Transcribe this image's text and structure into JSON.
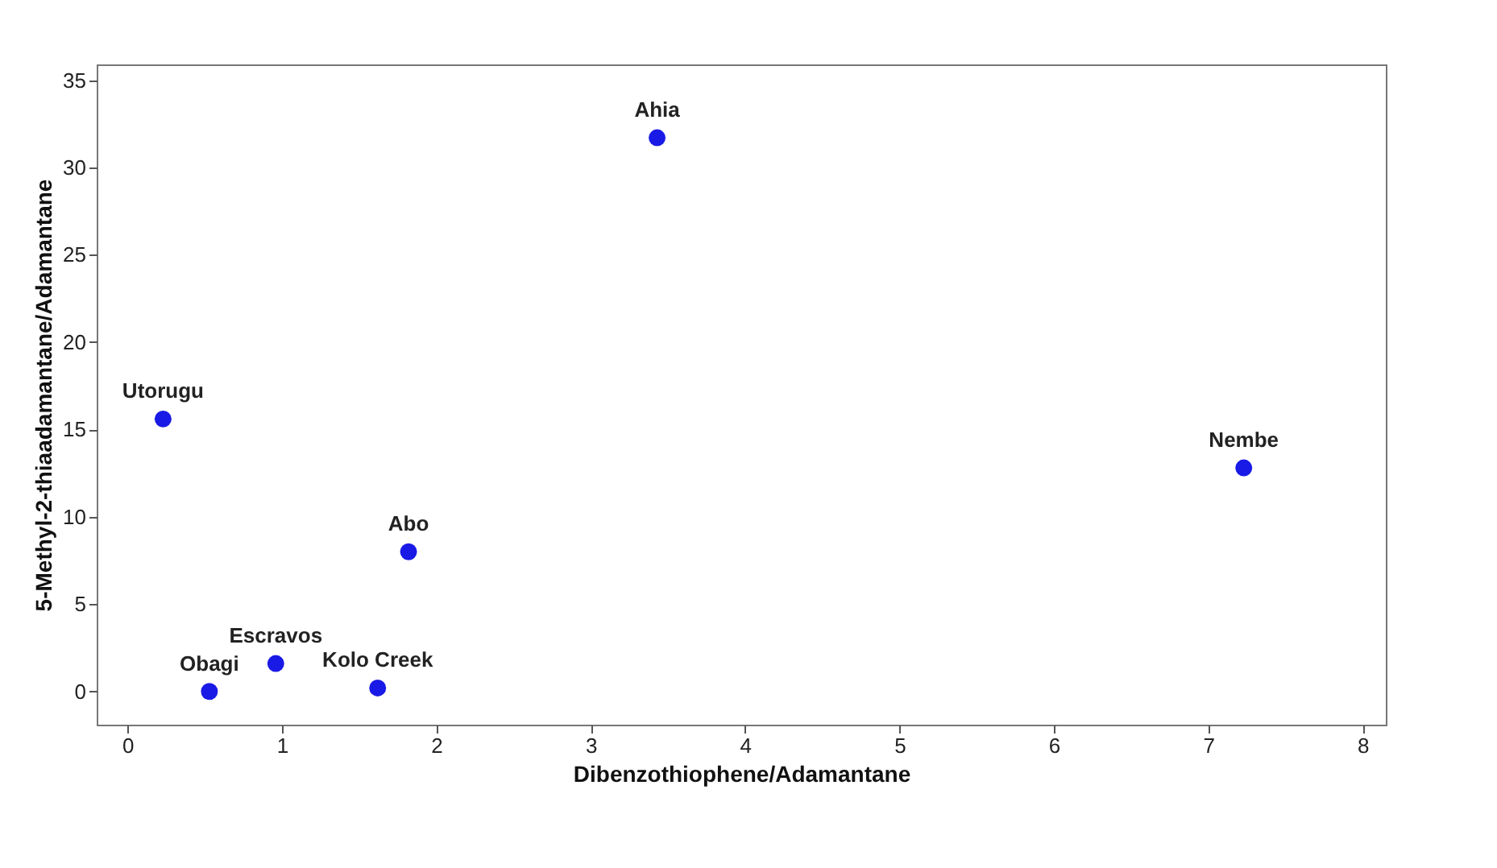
{
  "chart_data": {
    "type": "scatter",
    "xlabel": "Dibenzothiophene/Adamantane",
    "ylabel": "5-Methyl-2-thiaadamantane/Adamantane",
    "x": [
      0.23,
      3.43,
      7.23,
      1.82,
      0.96,
      0.53,
      1.62
    ],
    "series": [
      {
        "color": "#1a1ae6",
        "values": [
          15.6,
          31.7,
          12.8,
          8.0,
          1.6,
          0.0,
          0.2
        ]
      }
    ],
    "annotations": [
      {
        "text": "Utorugu",
        "x": 0.23,
        "y": 15.6
      },
      {
        "text": "Ahia",
        "x": 3.43,
        "y": 31.7
      },
      {
        "text": "Nembe",
        "x": 7.23,
        "y": 12.8
      },
      {
        "text": "Abo",
        "x": 1.82,
        "y": 8.0
      },
      {
        "text": "Escravos",
        "x": 0.96,
        "y": 1.6
      },
      {
        "text": "Obagi",
        "x": 0.53,
        "y": 0.0
      },
      {
        "text": "Kolo Creek",
        "x": 1.62,
        "y": 0.2
      }
    ],
    "xlim": [
      -0.2,
      8.15
    ],
    "xticks": [
      0,
      1,
      2,
      3,
      4,
      5,
      6,
      7,
      8
    ],
    "ylim": [
      -1.9,
      35.9
    ],
    "yticks": [
      0,
      5,
      10,
      15,
      20,
      25,
      30,
      35
    ],
    "grid": false,
    "marker": "circle"
  }
}
